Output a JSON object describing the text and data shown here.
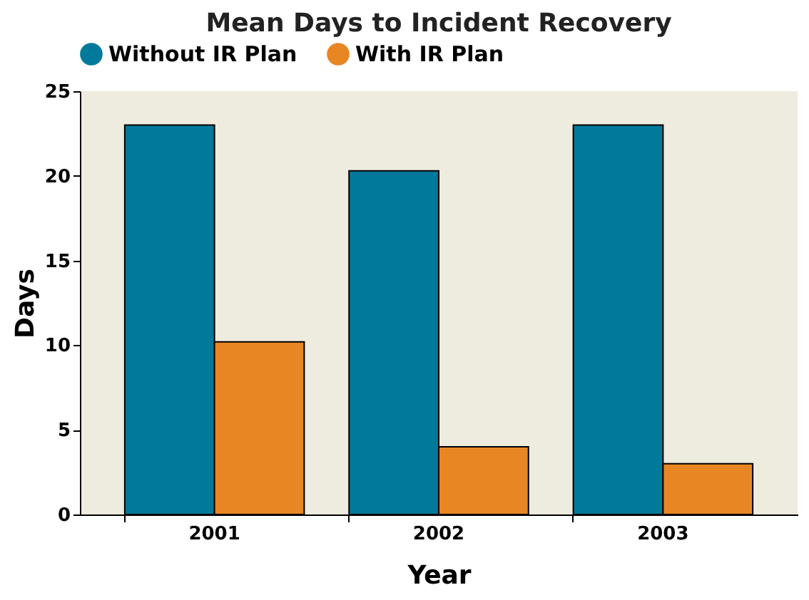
{
  "chart_data": {
    "type": "bar",
    "title": "Mean Days to Incident Recovery",
    "xlabel": "Year",
    "ylabel": "Days",
    "categories": [
      "2001",
      "2002",
      "2003"
    ],
    "series": [
      {
        "name": "Without IR Plan",
        "color": "#00799a",
        "values": [
          23,
          20.3,
          23
        ]
      },
      {
        "name": "With IR Plan",
        "color": "#e88624",
        "values": [
          10.2,
          4,
          3
        ]
      }
    ],
    "ylim": [
      0,
      25
    ],
    "yticks": [
      0,
      5,
      10,
      15,
      20,
      25
    ],
    "grid": false,
    "legend": "top"
  }
}
